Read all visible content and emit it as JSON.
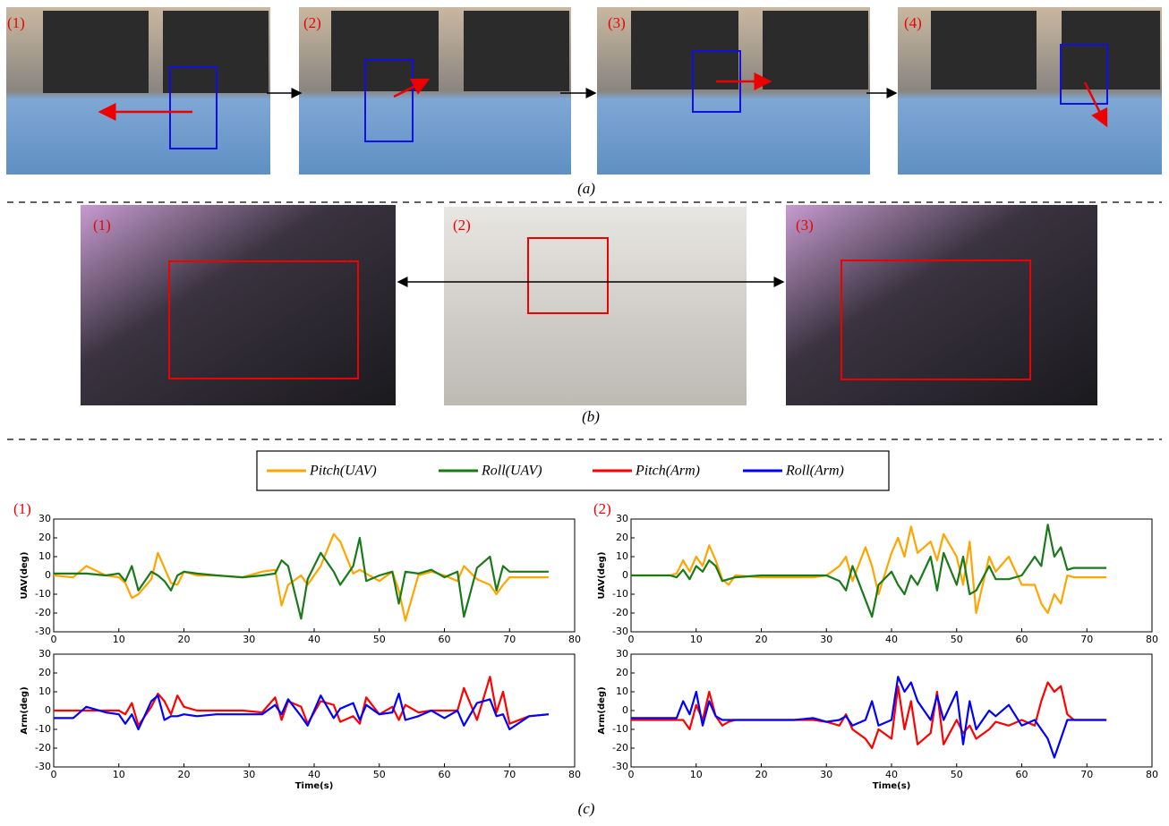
{
  "figure_a": {
    "panel_labels": [
      "(1)",
      "(2)",
      "(3)",
      "(4)"
    ],
    "caption": "(a)"
  },
  "figure_b": {
    "panel_labels": [
      "(1)",
      "(2)",
      "(3)"
    ],
    "caption": "(b)"
  },
  "figure_c": {
    "panel_labels": [
      "(1)",
      "(2)"
    ],
    "caption": "(c)"
  },
  "chart_data": [
    {
      "type": "line",
      "ylabel": "UAV(deg)",
      "xlim": [
        0,
        80
      ],
      "ylim": [
        -30,
        30
      ],
      "xticks": [
        0,
        10,
        20,
        30,
        40,
        50,
        60,
        70,
        80
      ],
      "yticks": [
        -30,
        -20,
        -10,
        0,
        10,
        20,
        30
      ],
      "x": [
        0,
        3,
        5,
        8,
        10,
        11,
        12,
        13,
        15,
        16,
        17,
        18,
        19,
        20,
        22,
        25,
        29,
        32,
        34,
        35,
        36,
        38,
        39,
        41,
        43,
        44,
        46,
        47,
        48,
        50,
        52,
        53,
        54,
        56,
        58,
        60,
        62,
        63,
        65,
        67,
        68,
        69,
        70,
        73,
        76
      ],
      "series": [
        {
          "name": "Pitch(UAV)",
          "color": "#ffa500",
          "values": [
            0,
            -1,
            5,
            0,
            -1,
            -4,
            -12,
            -10,
            -2,
            12,
            4,
            -4,
            -5,
            2,
            0,
            0,
            -1,
            2,
            3,
            -16,
            -5,
            0,
            -5,
            5,
            22,
            18,
            1,
            3,
            1,
            -3,
            2,
            -8,
            -24,
            0,
            2,
            0,
            -3,
            5,
            -2,
            -5,
            -10,
            -5,
            -1,
            -1,
            -1
          ]
        },
        {
          "name": "Roll(UAV)",
          "color": "#1a7a1a",
          "values": [
            1,
            1,
            1,
            0,
            1,
            -3,
            5,
            -8,
            2,
            0,
            -3,
            -8,
            0,
            2,
            1,
            0,
            -1,
            0,
            1,
            8,
            5,
            -23,
            -2,
            12,
            2,
            -5,
            5,
            20,
            -3,
            0,
            2,
            -15,
            2,
            1,
            3,
            -1,
            2,
            -22,
            4,
            10,
            -8,
            5,
            2,
            2,
            2
          ]
        }
      ]
    },
    {
      "type": "line",
      "ylabel": "Arm(deg)",
      "xlabel": "Time(s)",
      "xlim": [
        0,
        80
      ],
      "ylim": [
        -30,
        30
      ],
      "xticks": [
        0,
        10,
        20,
        30,
        40,
        50,
        60,
        70,
        80
      ],
      "yticks": [
        -30,
        -20,
        -10,
        0,
        10,
        20,
        30
      ],
      "x": [
        0,
        3,
        5,
        8,
        10,
        11,
        12,
        13,
        15,
        16,
        17,
        18,
        19,
        20,
        22,
        25,
        29,
        32,
        34,
        35,
        36,
        38,
        39,
        41,
        43,
        44,
        46,
        47,
        48,
        50,
        52,
        53,
        54,
        56,
        58,
        60,
        62,
        63,
        65,
        67,
        68,
        69,
        70,
        73,
        76
      ],
      "series": [
        {
          "name": "Pitch(Arm)",
          "color": "#ff0000",
          "values": [
            0,
            0,
            0,
            0,
            0,
            -2,
            4,
            -8,
            2,
            9,
            5,
            -2,
            8,
            2,
            0,
            0,
            0,
            -1,
            7,
            -5,
            5,
            2,
            -7,
            5,
            3,
            -6,
            -3,
            -7,
            7,
            -2,
            2,
            -5,
            3,
            -1,
            0,
            0,
            0,
            12,
            -5,
            18,
            -1,
            10,
            -7,
            -3,
            -2
          ]
        },
        {
          "name": "Roll(Arm)",
          "color": "#0000ff",
          "values": [
            -4,
            -4,
            2,
            -1,
            -2,
            -7,
            -2,
            -10,
            5,
            8,
            -5,
            -3,
            -3,
            -2,
            -3,
            -2,
            -2,
            -2,
            3,
            -2,
            6,
            -3,
            -8,
            8,
            -4,
            1,
            4,
            -5,
            3,
            -2,
            -1,
            9,
            -5,
            -3,
            0,
            -4,
            0,
            -8,
            4,
            6,
            -3,
            -2,
            -10,
            -3,
            -2
          ]
        }
      ]
    },
    {
      "type": "line",
      "ylabel": "UAV(deg)",
      "xlim": [
        0,
        80
      ],
      "ylim": [
        -30,
        30
      ],
      "xticks": [
        0,
        10,
        20,
        30,
        40,
        50,
        60,
        70,
        80
      ],
      "yticks": [
        -30,
        -20,
        -10,
        0,
        10,
        20,
        30
      ],
      "x": [
        0,
        3,
        6,
        7,
        8,
        9,
        10,
        11,
        12,
        13,
        14,
        15,
        16,
        20,
        25,
        28,
        30,
        32,
        33,
        34,
        36,
        37,
        38,
        40,
        41,
        42,
        43,
        44,
        46,
        47,
        48,
        50,
        51,
        52,
        53,
        55,
        56,
        58,
        60,
        62,
        63,
        64,
        65,
        66,
        67,
        68,
        73
      ],
      "series": [
        {
          "name": "Pitch(UAV)",
          "color": "#ffa500",
          "values": [
            0,
            0,
            0,
            1,
            8,
            2,
            10,
            5,
            16,
            8,
            -2,
            -5,
            0,
            -1,
            -1,
            -1,
            0,
            5,
            10,
            -3,
            15,
            5,
            -10,
            12,
            20,
            10,
            26,
            12,
            18,
            8,
            22,
            10,
            -5,
            18,
            -20,
            10,
            2,
            10,
            -5,
            -5,
            -15,
            -20,
            -10,
            -15,
            0,
            -1,
            -1
          ]
        },
        {
          "name": "Roll(UAV)",
          "color": "#1a7a1a",
          "values": [
            0,
            0,
            0,
            -1,
            3,
            -2,
            5,
            2,
            8,
            5,
            -3,
            -2,
            -1,
            0,
            0,
            0,
            0,
            -3,
            -8,
            5,
            -13,
            -22,
            -5,
            2,
            -5,
            -10,
            0,
            -5,
            10,
            -8,
            12,
            -5,
            10,
            -10,
            -8,
            5,
            -2,
            -2,
            0,
            10,
            5,
            27,
            10,
            15,
            3,
            4,
            4
          ]
        }
      ]
    },
    {
      "type": "line",
      "ylabel": "Arm(deg)",
      "xlabel": "Time(s)",
      "xlim": [
        0,
        80
      ],
      "ylim": [
        -30,
        30
      ],
      "xticks": [
        0,
        10,
        20,
        30,
        40,
        50,
        60,
        70,
        80
      ],
      "yticks": [
        -30,
        -20,
        -10,
        0,
        10,
        20,
        30
      ],
      "x": [
        0,
        3,
        6,
        7,
        8,
        9,
        10,
        11,
        12,
        13,
        14,
        15,
        16,
        20,
        25,
        28,
        30,
        32,
        33,
        34,
        36,
        37,
        38,
        40,
        41,
        42,
        43,
        44,
        46,
        47,
        48,
        50,
        51,
        52,
        53,
        55,
        56,
        58,
        60,
        62,
        63,
        64,
        65,
        66,
        67,
        68,
        73
      ],
      "series": [
        {
          "name": "Pitch(Arm)",
          "color": "#ff0000",
          "values": [
            -5,
            -5,
            -5,
            -5,
            -5,
            -10,
            3,
            -5,
            10,
            -3,
            -8,
            -6,
            -5,
            -5,
            -5,
            -5,
            -6,
            -8,
            -2,
            -10,
            -15,
            -20,
            -10,
            -15,
            13,
            -10,
            5,
            -18,
            -12,
            10,
            -18,
            -5,
            -12,
            -8,
            -15,
            -10,
            -6,
            -8,
            -5,
            -8,
            5,
            15,
            10,
            13,
            -2,
            -5,
            -5
          ]
        },
        {
          "name": "Roll(Arm)",
          "color": "#0000ff",
          "values": [
            -4,
            -4,
            -4,
            -4,
            5,
            -2,
            10,
            -8,
            5,
            -3,
            -5,
            -5,
            -5,
            -5,
            -5,
            -4,
            -6,
            -5,
            -3,
            -8,
            -5,
            5,
            -8,
            -5,
            18,
            10,
            15,
            5,
            -5,
            8,
            -5,
            10,
            -18,
            5,
            -10,
            0,
            -3,
            3,
            -8,
            -5,
            -10,
            -15,
            -25,
            -15,
            -5,
            -5,
            -5
          ]
        }
      ]
    }
  ]
}
